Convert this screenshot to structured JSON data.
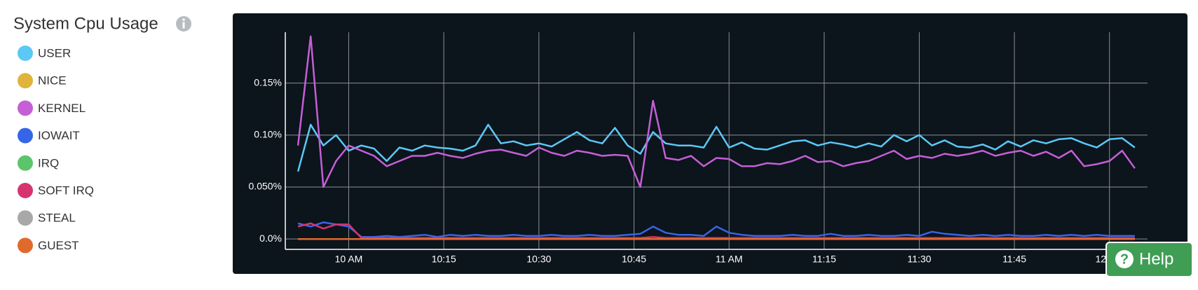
{
  "chart_data": {
    "type": "line",
    "title": "System Cpu Usage",
    "x": [
      "09:52",
      "09:54",
      "09:56",
      "09:58",
      "10:00",
      "10:02",
      "10:04",
      "10:06",
      "10:08",
      "10:10",
      "10:12",
      "10:14",
      "10:16",
      "10:18",
      "10:20",
      "10:22",
      "10:24",
      "10:26",
      "10:28",
      "10:30",
      "10:32",
      "10:34",
      "10:36",
      "10:38",
      "10:40",
      "10:42",
      "10:44",
      "10:46",
      "10:48",
      "10:50",
      "10:52",
      "10:54",
      "10:56",
      "10:58",
      "11:00",
      "11:02",
      "11:04",
      "11:06",
      "11:08",
      "11:10",
      "11:12",
      "11:14",
      "11:16",
      "11:18",
      "11:20",
      "11:22",
      "11:24",
      "11:26",
      "11:28",
      "11:30",
      "11:32",
      "11:34",
      "11:36",
      "11:38",
      "11:40",
      "11:42",
      "11:44",
      "11:46",
      "11:48",
      "11:50",
      "11:52",
      "11:54",
      "11:56",
      "11:58",
      "12:00",
      "12:02",
      "12:04"
    ],
    "xlim": [
      "09:50",
      "12:06"
    ],
    "xticks": [
      {
        "value": "10:00",
        "label": "10 AM"
      },
      {
        "value": "10:15",
        "label": "10:15"
      },
      {
        "value": "10:30",
        "label": "10:30"
      },
      {
        "value": "10:45",
        "label": "10:45"
      },
      {
        "value": "11:00",
        "label": "11 AM"
      },
      {
        "value": "11:15",
        "label": "11:15"
      },
      {
        "value": "11:30",
        "label": "11:30"
      },
      {
        "value": "11:45",
        "label": "11:45"
      },
      {
        "value": "12:00",
        "label": "12 PM"
      }
    ],
    "ylim": [
      -0.01,
      0.199
    ],
    "yticks": [
      {
        "value": 0,
        "label": "0.0%"
      },
      {
        "value": 0.05,
        "label": "0.050%"
      },
      {
        "value": 0.1,
        "label": "0.10%"
      },
      {
        "value": 0.15,
        "label": "0.15%"
      }
    ],
    "grid": true,
    "series": [
      {
        "name": "USER",
        "color": "#5bc8f5",
        "values": [
          0.065,
          0.11,
          0.09,
          0.1,
          0.085,
          0.09,
          0.087,
          0.075,
          0.088,
          0.085,
          0.09,
          0.088,
          0.087,
          0.085,
          0.09,
          0.11,
          0.092,
          0.094,
          0.09,
          0.092,
          0.089,
          0.096,
          0.103,
          0.095,
          0.092,
          0.107,
          0.09,
          0.082,
          0.103,
          0.092,
          0.09,
          0.09,
          0.088,
          0.108,
          0.088,
          0.093,
          0.087,
          0.086,
          0.09,
          0.094,
          0.095,
          0.09,
          0.093,
          0.091,
          0.088,
          0.092,
          0.089,
          0.1,
          0.094,
          0.1,
          0.09,
          0.095,
          0.089,
          0.088,
          0.091,
          0.086,
          0.094,
          0.089,
          0.095,
          0.092,
          0.096,
          0.097,
          0.092,
          0.088,
          0.096,
          0.097,
          0.088
        ]
      },
      {
        "name": "NICE",
        "color": "#e0b43a",
        "values": [
          0,
          0,
          0,
          0,
          0,
          0,
          0,
          0,
          0,
          0,
          0,
          0,
          0,
          0,
          0,
          0,
          0,
          0,
          0,
          0,
          0,
          0,
          0,
          0,
          0,
          0,
          0,
          0,
          0,
          0,
          0,
          0,
          0,
          0,
          0,
          0,
          0,
          0,
          0,
          0,
          0,
          0,
          0,
          0,
          0,
          0,
          0,
          0,
          0,
          0,
          0,
          0,
          0,
          0,
          0,
          0,
          0,
          0,
          0,
          0,
          0,
          0,
          0,
          0,
          0,
          0,
          0
        ]
      },
      {
        "name": "KERNEL",
        "color": "#c45fd6",
        "values": [
          0.09,
          0.195,
          0.05,
          0.075,
          0.09,
          0.085,
          0.08,
          0.07,
          0.075,
          0.08,
          0.08,
          0.083,
          0.08,
          0.078,
          0.082,
          0.085,
          0.086,
          0.083,
          0.08,
          0.088,
          0.083,
          0.08,
          0.085,
          0.083,
          0.08,
          0.081,
          0.08,
          0.05,
          0.133,
          0.078,
          0.076,
          0.08,
          0.07,
          0.078,
          0.077,
          0.07,
          0.07,
          0.073,
          0.072,
          0.075,
          0.08,
          0.074,
          0.075,
          0.07,
          0.073,
          0.075,
          0.08,
          0.085,
          0.077,
          0.08,
          0.078,
          0.082,
          0.08,
          0.082,
          0.085,
          0.08,
          0.083,
          0.085,
          0.08,
          0.084,
          0.078,
          0.085,
          0.07,
          0.072,
          0.075,
          0.085,
          0.068
        ]
      },
      {
        "name": "IOWAIT",
        "color": "#3566e8",
        "values": [
          0.015,
          0.012,
          0.016,
          0.014,
          0.012,
          0.002,
          0.002,
          0.003,
          0.002,
          0.003,
          0.004,
          0.002,
          0.004,
          0.003,
          0.004,
          0.003,
          0.003,
          0.004,
          0.003,
          0.003,
          0.004,
          0.003,
          0.003,
          0.004,
          0.003,
          0.003,
          0.004,
          0.005,
          0.012,
          0.006,
          0.004,
          0.004,
          0.003,
          0.012,
          0.006,
          0.004,
          0.003,
          0.003,
          0.003,
          0.004,
          0.003,
          0.003,
          0.005,
          0.003,
          0.003,
          0.004,
          0.003,
          0.003,
          0.004,
          0.003,
          0.007,
          0.005,
          0.004,
          0.003,
          0.004,
          0.003,
          0.004,
          0.003,
          0.003,
          0.004,
          0.003,
          0.004,
          0.003,
          0.004,
          0.003,
          0.003,
          0.003
        ]
      },
      {
        "name": "IRQ",
        "color": "#5cc46a",
        "values": [
          0,
          0,
          0,
          0,
          0,
          0,
          0,
          0,
          0,
          0,
          0,
          0,
          0,
          0,
          0,
          0,
          0,
          0,
          0,
          0,
          0,
          0,
          0,
          0,
          0,
          0,
          0,
          0,
          0,
          0,
          0,
          0,
          0,
          0,
          0,
          0,
          0,
          0,
          0,
          0,
          0,
          0,
          0,
          0,
          0,
          0,
          0,
          0,
          0,
          0,
          0,
          0,
          0,
          0,
          0,
          0,
          0,
          0,
          0,
          0,
          0,
          0,
          0,
          0,
          0,
          0,
          0
        ]
      },
      {
        "name": "SOFT IRQ",
        "color": "#d6346e",
        "values": [
          0.012,
          0.015,
          0.01,
          0.014,
          0.014,
          0.001,
          0.001,
          0.001,
          0.001,
          0.001,
          0.001,
          0.001,
          0.001,
          0.001,
          0.001,
          0.001,
          0.001,
          0.001,
          0.001,
          0.001,
          0.001,
          0.001,
          0.001,
          0.001,
          0.001,
          0.001,
          0.001,
          0.001,
          0.002,
          0.001,
          0.001,
          0.001,
          0.001,
          0.001,
          0.001,
          0.001,
          0.001,
          0.001,
          0.001,
          0.001,
          0.001,
          0.001,
          0.001,
          0.001,
          0.001,
          0.001,
          0.001,
          0.001,
          0.001,
          0.001,
          0.001,
          0.001,
          0.001,
          0.001,
          0.001,
          0.001,
          0.001,
          0.001,
          0.001,
          0.001,
          0.001,
          0.001,
          0.001,
          0.001,
          0.001,
          0.001,
          0.001
        ]
      },
      {
        "name": "STEAL",
        "color": "#a8a8a8",
        "values": [
          0,
          0,
          0,
          0,
          0,
          0,
          0,
          0,
          0,
          0,
          0,
          0,
          0,
          0,
          0,
          0,
          0,
          0,
          0,
          0,
          0,
          0,
          0,
          0,
          0,
          0,
          0,
          0,
          0,
          0,
          0,
          0,
          0,
          0,
          0,
          0,
          0,
          0,
          0,
          0,
          0,
          0,
          0,
          0,
          0,
          0,
          0,
          0,
          0,
          0,
          0,
          0,
          0,
          0,
          0,
          0,
          0,
          0,
          0,
          0,
          0,
          0,
          0,
          0,
          0,
          0,
          0
        ]
      },
      {
        "name": "GUEST",
        "color": "#e06a2c",
        "values": [
          0,
          0,
          0,
          0,
          0,
          0,
          0,
          0,
          0,
          0,
          0,
          0,
          0,
          0,
          0,
          0,
          0,
          0,
          0,
          0,
          0,
          0,
          0,
          0,
          0,
          0,
          0,
          0,
          0,
          0,
          0,
          0,
          0,
          0,
          0,
          0,
          0,
          0,
          0,
          0,
          0,
          0,
          0,
          0,
          0,
          0,
          0,
          0,
          0,
          0,
          0,
          0,
          0,
          0,
          0,
          0,
          0,
          0,
          0,
          0,
          0,
          0,
          0,
          0,
          0,
          0,
          0
        ]
      }
    ]
  },
  "help_button": {
    "icon": "?",
    "label": "Help"
  }
}
